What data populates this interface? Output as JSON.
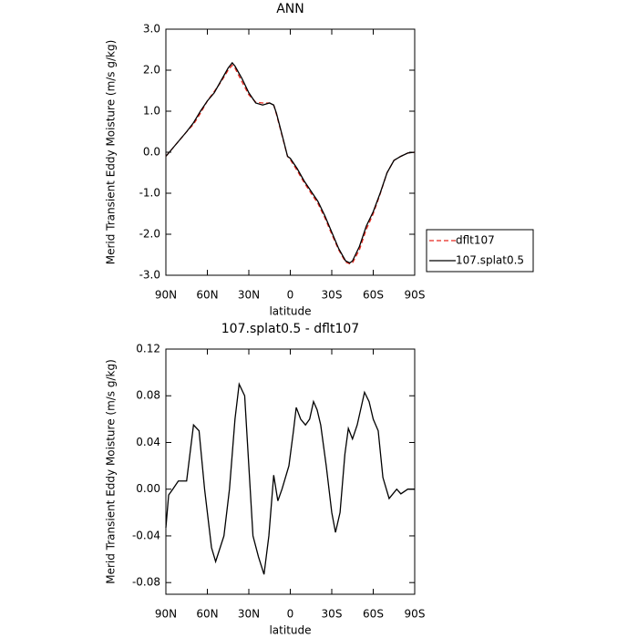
{
  "chart_data": [
    {
      "type": "line",
      "title": "ANN",
      "x_label": "latitude",
      "y_label": "Merid Transient Eddy Moisture (m/s g/kg)",
      "x": [
        90,
        85,
        80,
        75,
        70,
        65,
        60,
        55,
        50,
        45,
        42,
        40,
        35,
        30,
        25,
        20,
        15,
        12,
        10,
        5,
        2,
        0,
        -5,
        -10,
        -15,
        -20,
        -25,
        -30,
        -35,
        -40,
        -43,
        -45,
        -50,
        -55,
        -60,
        -65,
        -70,
        -75,
        -80,
        -85,
        -90
      ],
      "series": [
        {
          "name": "dflt107",
          "color": "#e8281e",
          "linestyle": "dashed",
          "values": [
            -0.1,
            0.1,
            0.3,
            0.5,
            0.68,
            0.95,
            1.25,
            1.48,
            1.72,
            2.0,
            2.12,
            2.05,
            1.72,
            1.4,
            1.22,
            1.2,
            1.2,
            1.15,
            0.92,
            0.28,
            -0.1,
            -0.18,
            -0.45,
            -0.74,
            -1.0,
            -1.25,
            -1.6,
            -2.0,
            -2.38,
            -2.68,
            -2.72,
            -2.7,
            -2.38,
            -1.88,
            -1.5,
            -1.02,
            -0.5,
            -0.2,
            -0.1,
            -0.02,
            0.0
          ]
        },
        {
          "name": "107.splat0.5",
          "color": "#000000",
          "linestyle": "solid",
          "values": [
            -0.1,
            0.1,
            0.3,
            0.5,
            0.72,
            1.0,
            1.25,
            1.45,
            1.75,
            2.05,
            2.18,
            2.1,
            1.8,
            1.45,
            1.2,
            1.15,
            1.2,
            1.15,
            0.95,
            0.3,
            -0.1,
            -0.15,
            -0.4,
            -0.7,
            -0.95,
            -1.2,
            -1.55,
            -1.95,
            -2.35,
            -2.65,
            -2.7,
            -2.65,
            -2.3,
            -1.8,
            -1.45,
            -1.0,
            -0.5,
            -0.2,
            -0.1,
            -0.02,
            0.0
          ]
        }
      ],
      "xlim": [
        90,
        -90
      ],
      "xticks": [
        {
          "value": 90,
          "label": "90N"
        },
        {
          "value": 60,
          "label": "60N"
        },
        {
          "value": 30,
          "label": "30N"
        },
        0,
        {
          "value": -30,
          "label": "30S"
        },
        {
          "value": -60,
          "label": "60S"
        },
        {
          "value": -90,
          "label": "90S"
        }
      ],
      "ylim": [
        -3,
        3
      ],
      "yticks": [
        {
          "value": -3,
          "label": "-3.0"
        },
        {
          "value": -2,
          "label": "-2.0"
        },
        {
          "value": -1,
          "label": "-1.0"
        },
        {
          "value": 0,
          "label": "0.0"
        },
        {
          "value": 1,
          "label": "1.0"
        },
        {
          "value": 2,
          "label": "2.0"
        },
        {
          "value": 3,
          "label": "3.0"
        }
      ],
      "legend": "right"
    },
    {
      "type": "line",
      "title": "107.splat0.5 - dflt107",
      "x_label": "latitude",
      "y_label": "Merid Transient Eddy Moisture (m/s g/kg)",
      "x": [
        90,
        88,
        85,
        81,
        75,
        70,
        66,
        62,
        57,
        54,
        48,
        44,
        40,
        37,
        33,
        31,
        27,
        23,
        19,
        15.5,
        12,
        9,
        6,
        1,
        -2.3,
        -4.3,
        -7.5,
        -11,
        -14,
        -16.8,
        -19.4,
        -22,
        -26,
        -30,
        -32.7,
        -36,
        -39.5,
        -42,
        -45,
        -48.4,
        -53.7,
        -57,
        -60,
        -63.6,
        -67,
        -71.5,
        -77,
        -80,
        -85,
        -88,
        -90
      ],
      "values": [
        -0.033,
        -0.005,
        0.0,
        0.007,
        0.007,
        0.055,
        0.05,
        0.0,
        -0.05,
        -0.062,
        -0.04,
        0.0,
        0.06,
        0.09,
        0.08,
        0.04,
        -0.04,
        -0.058,
        -0.073,
        -0.04,
        0.012,
        -0.01,
        0.0,
        0.02,
        0.05,
        0.07,
        0.06,
        0.055,
        0.06,
        0.075,
        0.068,
        0.055,
        0.02,
        -0.02,
        -0.037,
        -0.02,
        0.03,
        0.052,
        0.043,
        0.055,
        0.083,
        0.075,
        0.06,
        0.05,
        0.01,
        -0.008,
        0.0,
        -0.004,
        0.0,
        0.0,
        0.0
      ],
      "color": "#000000",
      "xlim": [
        90,
        -90
      ],
      "xticks": [
        {
          "value": 90,
          "label": "90N"
        },
        {
          "value": 60,
          "label": "60N"
        },
        {
          "value": 30,
          "label": "30N"
        },
        0,
        {
          "value": -30,
          "label": "30S"
        },
        {
          "value": -60,
          "label": "60S"
        },
        {
          "value": -90,
          "label": "90S"
        }
      ],
      "ylim": [
        -0.09,
        0.12
      ],
      "yticks": [
        -0.08,
        -0.04,
        {
          "value": 0,
          "label": "0.00"
        },
        0.04,
        0.08,
        0.12
      ]
    }
  ]
}
